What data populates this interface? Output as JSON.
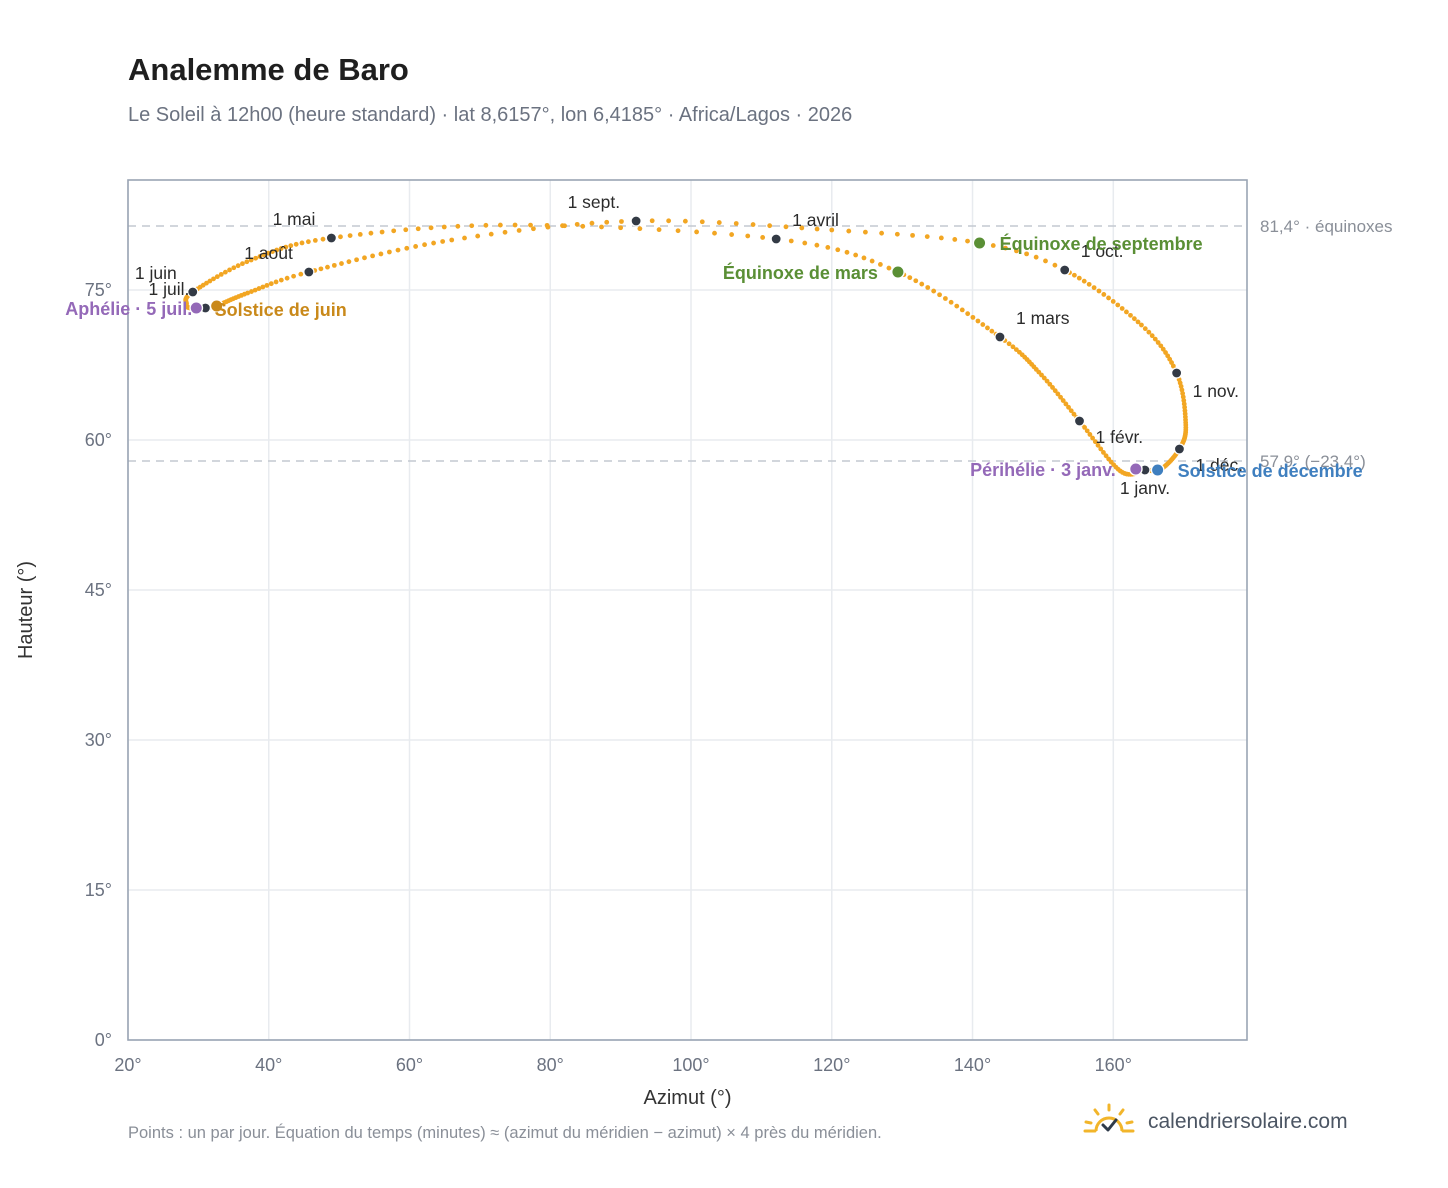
{
  "title": "Analemme de Baro",
  "subtitle": "Le Soleil à 12h00 (heure standard) · lat 8,6157°, lon 6,4185° · Africa/Lagos · 2026",
  "footnote": "Points : un par jour. Équation du temps (minutes) ≈ (azimut du méridien − azimut) × 4 près du méridien.",
  "brand": {
    "name": "calendriersolaire.com",
    "icon": "sun-check-icon"
  },
  "colors": {
    "curve": "#f2a623",
    "month_dot": "#333a45",
    "equinox": "#5a8f35",
    "perihelion": "#9469b8",
    "june_solstice": "#c9891a",
    "december_solstice": "#3f7fbf",
    "reference_line": "#c4c9d1",
    "grid": "#e8ebef",
    "frame": "#9aa5b4"
  },
  "chart_data": {
    "type": "scatter",
    "xlabel": "Azimut (°)",
    "ylabel": "Hauteur (°)",
    "xlim": [
      20,
      179
    ],
    "ylim": [
      0,
      86
    ],
    "xticks": [
      20,
      40,
      60,
      80,
      100,
      120,
      140,
      160
    ],
    "yticks": [
      0,
      15,
      30,
      45,
      60,
      75
    ],
    "tick_suffix": "°",
    "grid": true,
    "reference_lines": [
      {
        "y": 81.4,
        "label": "81,4° · équinoxes"
      },
      {
        "y": 57.9,
        "label": "57,9° (−23,4°)"
      }
    ],
    "path_keypoints": [
      {
        "doy": 0,
        "az": 164.5,
        "alt": 57.0
      },
      {
        "doy": 15,
        "az": 161.0,
        "alt": 56.9
      },
      {
        "doy": 31,
        "az": 155.2,
        "alt": 61.9
      },
      {
        "doy": 45,
        "az": 149.8,
        "alt": 66.5
      },
      {
        "doy": 59,
        "az": 143.9,
        "alt": 70.3
      },
      {
        "doy": 78,
        "az": 129.4,
        "alt": 76.8
      },
      {
        "doy": 90,
        "az": 112.1,
        "alt": 80.1
      },
      {
        "doy": 105,
        "az": 75.0,
        "alt": 81.5
      },
      {
        "doy": 120,
        "az": 48.9,
        "alt": 80.2
      },
      {
        "doy": 135,
        "az": 37.5,
        "alt": 78.0
      },
      {
        "doy": 151,
        "az": 29.2,
        "alt": 74.8
      },
      {
        "doy": 165,
        "az": 28.3,
        "alt": 73.6
      },
      {
        "doy": 172,
        "az": 28.8,
        "alt": 73.2
      },
      {
        "doy": 181,
        "az": 31.0,
        "alt": 73.2
      },
      {
        "doy": 186,
        "az": 32.5,
        "alt": 73.4
      },
      {
        "doy": 200,
        "az": 37.0,
        "alt": 74.7
      },
      {
        "doy": 212,
        "az": 45.7,
        "alt": 76.8
      },
      {
        "doy": 230,
        "az": 66.0,
        "alt": 80.0
      },
      {
        "doy": 243,
        "az": 92.2,
        "alt": 81.9
      },
      {
        "doy": 255,
        "az": 120.0,
        "alt": 81.0
      },
      {
        "doy": 265,
        "az": 141.0,
        "alt": 79.7
      },
      {
        "doy": 273,
        "az": 153.1,
        "alt": 77.0
      },
      {
        "doy": 290,
        "az": 164.0,
        "alt": 71.5
      },
      {
        "doy": 304,
        "az": 169.0,
        "alt": 66.7
      },
      {
        "doy": 320,
        "az": 170.3,
        "alt": 61.5
      },
      {
        "doy": 334,
        "az": 169.4,
        "alt": 59.1
      },
      {
        "doy": 350,
        "az": 166.8,
        "alt": 57.1
      },
      {
        "doy": 365,
        "az": 164.5,
        "alt": 57.0
      }
    ],
    "month_markers": [
      {
        "label": "1 janv.",
        "az": 164.5,
        "alt": 57.0,
        "anchor": "middle",
        "dx": 0,
        "dy": 24
      },
      {
        "label": "1 févr.",
        "az": 155.2,
        "alt": 61.9,
        "anchor": "start",
        "dx": 16,
        "dy": 22
      },
      {
        "label": "1 mars",
        "az": 143.9,
        "alt": 70.3,
        "anchor": "start",
        "dx": 16,
        "dy": -13
      },
      {
        "label": "1 avril",
        "az": 112.1,
        "alt": 80.1,
        "anchor": "start",
        "dx": 16,
        "dy": -13
      },
      {
        "label": "1 mai",
        "az": 48.9,
        "alt": 80.2,
        "anchor": "end",
        "dx": -16,
        "dy": -13
      },
      {
        "label": "1 juin",
        "az": 29.2,
        "alt": 74.8,
        "anchor": "end",
        "dx": -16,
        "dy": -13
      },
      {
        "label": "1 juil.",
        "az": 31.0,
        "alt": 73.2,
        "anchor": "end",
        "dx": -16,
        "dy": -13
      },
      {
        "label": "1 août",
        "az": 45.7,
        "alt": 76.8,
        "anchor": "end",
        "dx": -16,
        "dy": -13
      },
      {
        "label": "1 sept.",
        "az": 92.2,
        "alt": 81.9,
        "anchor": "end",
        "dx": -16,
        "dy": -13
      },
      {
        "label": "1 oct.",
        "az": 153.1,
        "alt": 77.0,
        "anchor": "start",
        "dx": 16,
        "dy": -13
      },
      {
        "label": "1 nov.",
        "az": 169.0,
        "alt": 66.7,
        "anchor": "start",
        "dx": 16,
        "dy": 24
      },
      {
        "label": "1 déc.",
        "az": 169.4,
        "alt": 59.1,
        "anchor": "start",
        "dx": 16,
        "dy": 22
      }
    ],
    "events": [
      {
        "label": "Équinoxe de mars",
        "az": 129.4,
        "alt": 76.8,
        "color": "#5a8f35",
        "anchor": "end",
        "dx": -20,
        "dy": 7
      },
      {
        "label": "Équinoxe de septembre",
        "az": 141.0,
        "alt": 79.7,
        "color": "#5a8f35",
        "anchor": "start",
        "dx": 20,
        "dy": 7
      },
      {
        "label": "Périhélie · 3 janv.",
        "az": 163.2,
        "alt": 57.1,
        "color": "#9469b8",
        "anchor": "end",
        "dx": -20,
        "dy": 7
      },
      {
        "label": "Solstice de décembre",
        "az": 166.3,
        "alt": 57.0,
        "color": "#3f7fbf",
        "anchor": "start",
        "dx": 20,
        "dy": 7
      },
      {
        "label": "Aphélie · 5 juil.",
        "az": 29.7,
        "alt": 73.2,
        "color": "#9469b8",
        "anchor": "end",
        "dx": -4,
        "dy": 7
      },
      {
        "label": "Solstice de juin",
        "az": 32.6,
        "alt": 73.4,
        "color": "#c9891a",
        "anchor": "start",
        "dx": -2,
        "dy": 10
      }
    ]
  }
}
